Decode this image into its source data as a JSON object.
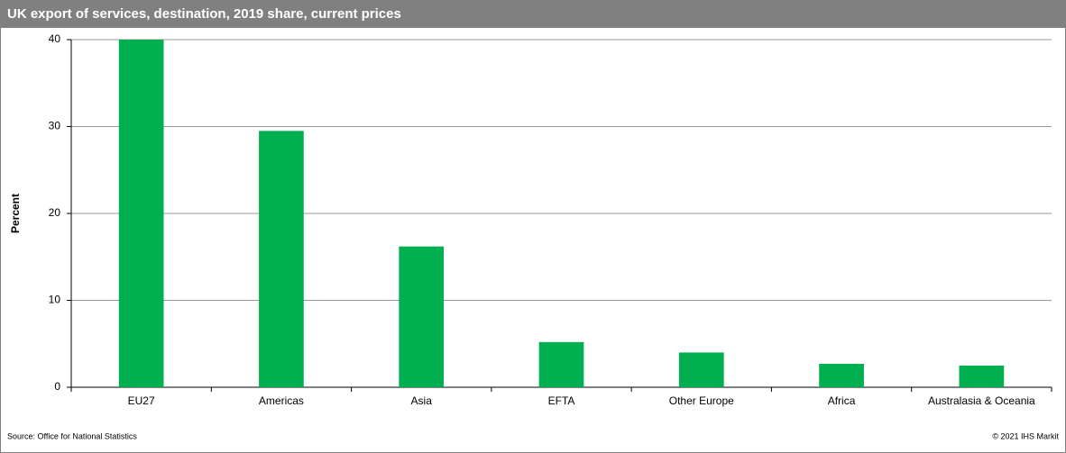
{
  "chart_data": {
    "type": "bar",
    "title": "UK export of services, destination, 2019 share, current prices",
    "y_label": "Percent",
    "categories": [
      "EU27",
      "Americas",
      "Asia",
      "EFTA",
      "Other Europe",
      "Africa",
      "Australasia & Oceania"
    ],
    "values": [
      40,
      29.5,
      16.2,
      5.2,
      4.0,
      2.7,
      2.5
    ],
    "color": "#00b050",
    "ylim": [
      0,
      40
    ],
    "yticks": [
      0,
      10,
      20,
      30,
      40
    ],
    "grid": true,
    "source": "Source:  Office for National Statistics",
    "copyright": "© 2021  IHS Markit"
  }
}
